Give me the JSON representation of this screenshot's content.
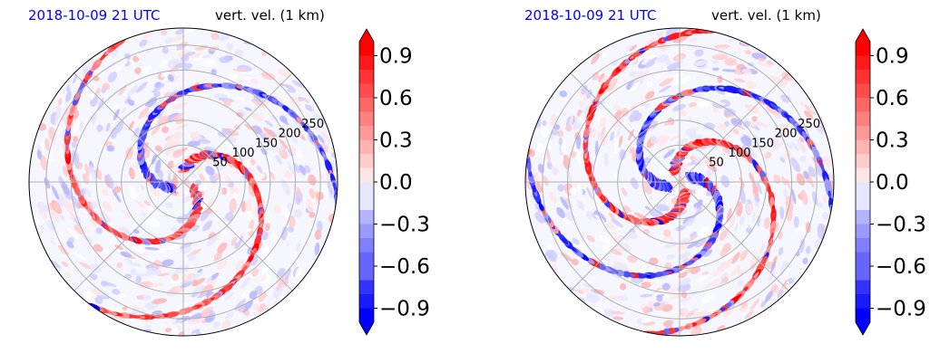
{
  "chart_data": [
    {
      "type": "heatmap",
      "projection": "polar",
      "title_left": "2018-10-09 21 UTC",
      "title_right": "vert. vel. (1 km)",
      "radial_ticks": [
        "50",
        "100",
        "150",
        "200",
        "250"
      ],
      "radial_values": [
        50,
        100,
        150,
        200,
        250
      ],
      "colorbar": {
        "ticks": [
          "0.9",
          "0.6",
          "0.3",
          "0.0",
          "−0.3",
          "−0.6",
          "−0.9"
        ],
        "tick_values": [
          0.9,
          0.6,
          0.3,
          0.0,
          -0.3,
          -0.6,
          -0.9
        ],
        "range": [
          -1.0,
          1.0
        ],
        "extend": "both"
      },
      "colormap": {
        "low": "#0000ff",
        "mid": "#ffffff",
        "high": "#ff0000"
      },
      "grid": true
    },
    {
      "type": "heatmap",
      "projection": "polar",
      "title_left": "2018-10-09 21 UTC",
      "title_right": "vert. vel. (1 km)",
      "radial_ticks": [
        "50",
        "100",
        "150",
        "200",
        "250"
      ],
      "radial_values": [
        50,
        100,
        150,
        200,
        250
      ],
      "colorbar": {
        "ticks": [
          "0.9",
          "0.6",
          "0.3",
          "0.0",
          "−0.3",
          "−0.6",
          "−0.9"
        ],
        "tick_values": [
          0.9,
          0.6,
          0.3,
          0.0,
          -0.3,
          -0.6,
          -0.9
        ],
        "range": [
          -1.0,
          1.0
        ],
        "extend": "both"
      },
      "colormap": {
        "low": "#0000ff",
        "mid": "#ffffff",
        "high": "#ff0000"
      },
      "grid": true
    }
  ]
}
